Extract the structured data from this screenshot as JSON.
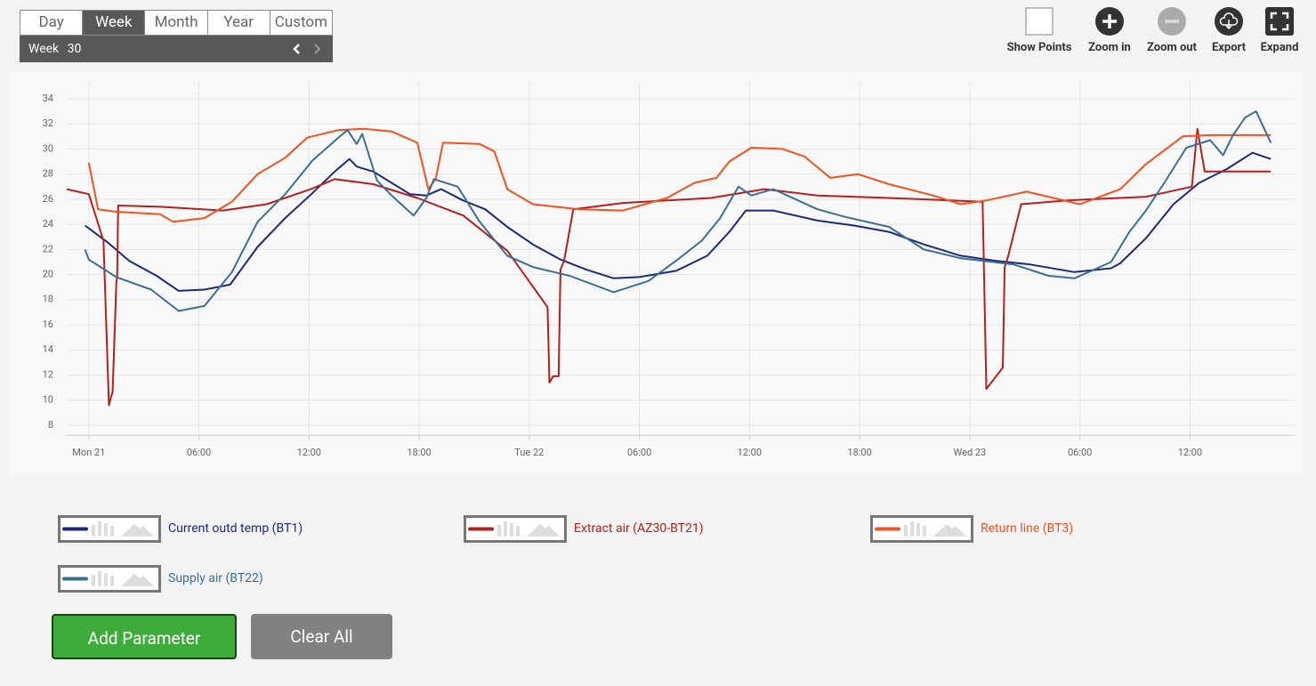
{
  "period_tabs": [
    "Day",
    "Week",
    "Month",
    "Year",
    "Custom"
  ],
  "selected_tab": 1,
  "period": {
    "label": "Week",
    "number": 30
  },
  "toolbar": [
    "Show Points",
    "Zoom in",
    "Zoom out",
    "Export",
    "Expand"
  ],
  "buttons": [
    "Add Parameter",
    "Clear All"
  ],
  "chart_data": {
    "type": "line",
    "xlim": [
      -1.2,
      65.7
    ],
    "xticks": [
      {
        "value": 0,
        "label": "Mon 21"
      },
      {
        "value": 6,
        "label": "06:00"
      },
      {
        "value": 12,
        "label": "12:00"
      },
      {
        "value": 18,
        "label": "18:00"
      },
      {
        "value": 24,
        "label": "Tue 22"
      },
      {
        "value": 30,
        "label": "06:00"
      },
      {
        "value": 36,
        "label": "12:00"
      },
      {
        "value": 42,
        "label": "18:00"
      },
      {
        "value": 48,
        "label": "Wed 23"
      },
      {
        "value": 54,
        "label": "06:00"
      },
      {
        "value": 60,
        "label": "12:00"
      }
    ],
    "ylim": [
      7.2,
      35.3
    ],
    "yticks": [
      8,
      10,
      12,
      14,
      16,
      18,
      20,
      22,
      24,
      26,
      28,
      30,
      32,
      34
    ],
    "grid": true,
    "series": [
      {
        "name": "Current outd temp (BT1)",
        "color": "#1b2a7b",
        "x": [
          -0.2,
          1.0,
          2.2,
          3.7,
          4.9,
          6.3,
          7.7,
          9.2,
          10.7,
          12.2,
          13.4,
          14.2,
          14.6,
          15.5,
          16.5,
          17.5,
          18.4,
          19.2,
          20.4,
          21.6,
          22.8,
          24.2,
          25.7,
          27.1,
          28.6,
          30.0,
          32.0,
          33.7,
          34.9,
          35.8,
          37.3,
          39.7,
          41.7,
          43.6,
          45.5,
          47.5,
          49.4,
          51.3,
          53.7,
          55.7,
          56.2,
          57.6,
          59.1,
          60.5,
          62.0,
          63.4,
          64.4
        ],
        "values": [
          23.9,
          22.6,
          21.1,
          19.9,
          18.7,
          18.8,
          19.2,
          22.2,
          24.5,
          26.5,
          28.2,
          29.2,
          28.6,
          28.2,
          27.3,
          26.4,
          26.3,
          26.8,
          25.9,
          25.2,
          23.8,
          22.4,
          21.2,
          20.4,
          19.7,
          19.8,
          20.3,
          21.5,
          23.4,
          25.1,
          25.1,
          24.3,
          23.9,
          23.4,
          22.4,
          21.5,
          21.1,
          20.8,
          20.2,
          20.5,
          20.9,
          22.9,
          25.6,
          27.3,
          28.4,
          29.7,
          29.2
        ]
      },
      {
        "name": "Extract air (AZ30-BT21)",
        "color": "#b3201f",
        "x": [
          -1.2,
          0.0,
          0.8,
          1.1,
          1.3,
          1.5,
          1.55,
          1.6,
          3.9,
          7.3,
          9.7,
          12.1,
          13.4,
          15.5,
          17.9,
          20.4,
          22.8,
          25.0,
          25.1,
          25.3,
          25.6,
          25.7,
          25.9,
          26.4,
          29.1,
          33.9,
          36.8,
          39.7,
          43.6,
          48.7,
          48.9,
          49.8,
          49.9,
          50.1,
          50.8,
          53.3,
          57.6,
          60.1,
          60.4,
          60.8,
          64.4
        ],
        "values": [
          26.8,
          26.4,
          22.7,
          9.6,
          10.7,
          19.3,
          19.9,
          25.5,
          25.4,
          25.1,
          25.6,
          26.8,
          27.6,
          27.2,
          26.1,
          24.7,
          21.9,
          17.4,
          11.4,
          11.9,
          11.9,
          20.4,
          21.1,
          25.2,
          25.7,
          26.1,
          26.8,
          26.3,
          26.1,
          25.8,
          10.9,
          12.6,
          20.6,
          21.5,
          25.6,
          25.9,
          26.2,
          27.0,
          31.6,
          28.2,
          28.2
        ]
      },
      {
        "name": "Return line (BT3)",
        "color": "#f4511e",
        "x": [
          0.0,
          0.5,
          1.5,
          3.9,
          4.6,
          6.3,
          7.8,
          9.2,
          10.7,
          11.9,
          13.6,
          15.0,
          16.5,
          17.9,
          18.5,
          18.9,
          19.3,
          21.3,
          22.1,
          22.8,
          24.2,
          26.7,
          29.1,
          31.5,
          33.0,
          34.2,
          34.9,
          36.1,
          37.8,
          39.0,
          39.9,
          40.4,
          41.9,
          43.6,
          46.0,
          47.5,
          48.9,
          51.1,
          54.0,
          56.2,
          57.6,
          59.6,
          61.1,
          64.4
        ],
        "values": [
          28.9,
          25.2,
          25.0,
          24.8,
          24.2,
          24.5,
          25.8,
          28.0,
          29.3,
          30.9,
          31.5,
          31.6,
          31.4,
          30.5,
          26.8,
          27.6,
          30.5,
          30.4,
          29.8,
          26.8,
          25.6,
          25.2,
          25.1,
          26.1,
          27.3,
          27.7,
          29.0,
          30.1,
          30.0,
          29.4,
          28.3,
          27.7,
          28.0,
          27.2,
          26.3,
          25.6,
          25.9,
          26.6,
          25.6,
          26.8,
          28.8,
          31.0,
          31.1,
          31.1
        ]
      },
      {
        "name": "Supply air (BT22)",
        "color": "#3b6e93",
        "x": [
          -0.2,
          0.0,
          1.5,
          3.4,
          4.9,
          6.3,
          7.8,
          9.2,
          10.7,
          12.2,
          13.6,
          14.1,
          14.6,
          14.9,
          15.7,
          16.5,
          17.7,
          18.4,
          18.8,
          20.1,
          21.3,
          22.8,
          24.2,
          26.2,
          28.6,
          30.5,
          32.0,
          33.4,
          34.4,
          35.4,
          36.1,
          37.3,
          39.7,
          41.2,
          43.6,
          45.5,
          47.5,
          50.4,
          52.3,
          53.7,
          55.7,
          56.7,
          57.6,
          58.6,
          59.8,
          61.1,
          61.8,
          62.3,
          63.0,
          63.6,
          64.4
        ],
        "values": [
          22.0,
          21.2,
          19.8,
          18.8,
          17.1,
          17.5,
          20.2,
          24.2,
          26.4,
          29.1,
          30.9,
          31.5,
          30.4,
          31.2,
          27.5,
          26.3,
          24.7,
          26.1,
          27.6,
          27.0,
          24.2,
          21.5,
          20.6,
          19.9,
          18.6,
          19.5,
          21.1,
          22.7,
          24.5,
          27.0,
          26.3,
          26.8,
          25.2,
          24.6,
          23.8,
          22.0,
          21.3,
          20.8,
          19.9,
          19.7,
          21.0,
          23.4,
          25.1,
          27.3,
          30.1,
          30.7,
          29.5,
          31.0,
          32.5,
          33.0,
          30.5
        ]
      }
    ]
  }
}
